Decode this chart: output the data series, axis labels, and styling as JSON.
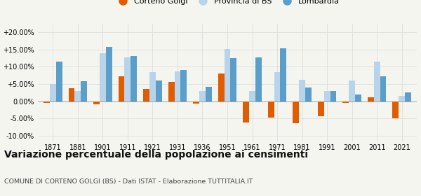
{
  "years": [
    1871,
    1881,
    1901,
    1911,
    1921,
    1931,
    1936,
    1951,
    1961,
    1971,
    1981,
    1991,
    2001,
    2011,
    2021
  ],
  "corteno": [
    -0.5,
    3.7,
    -0.8,
    7.3,
    3.5,
    5.7,
    -0.7,
    8.0,
    -6.2,
    -4.7,
    -6.4,
    -4.3,
    -0.5,
    1.2,
    -5.0
  ],
  "provincia": [
    5.0,
    3.0,
    14.0,
    12.7,
    8.5,
    8.7,
    3.0,
    15.2,
    3.0,
    8.4,
    6.2,
    3.0,
    6.0,
    11.5,
    1.5
  ],
  "lombardia": [
    11.5,
    5.8,
    15.8,
    13.2,
    6.1,
    9.0,
    4.3,
    12.5,
    12.8,
    15.3,
    4.0,
    3.0,
    2.0,
    7.3,
    2.6
  ],
  "color_corteno": "#e05c00",
  "color_provincia": "#b8d4ea",
  "color_lombardia": "#5b9ec9",
  "legend_labels": [
    "Corteno Golgi",
    "Provincia di BS",
    "Lombardia"
  ],
  "title": "Variazione percentuale della popolazione ai censimenti",
  "subtitle": "COMUNE DI CORTENO GOLGI (BS) - Dati ISTAT - Elaborazione TUTTITALIA.IT",
  "ylim": [
    -11.5,
    22.5
  ],
  "yticks": [
    -10.0,
    -5.0,
    0.0,
    5.0,
    10.0,
    15.0,
    20.0
  ],
  "ytick_labels": [
    "-10.00%",
    "-5.00%",
    "0.00%",
    "+5.00%",
    "+10.00%",
    "+15.00%",
    "+20.00%"
  ],
  "background_color": "#f5f5f0",
  "grid_color": "#dddddd",
  "title_fontsize": 10.0,
  "subtitle_fontsize": 6.8,
  "tick_fontsize": 7.0,
  "legend_fontsize": 8.0,
  "bar_width": 0.25
}
